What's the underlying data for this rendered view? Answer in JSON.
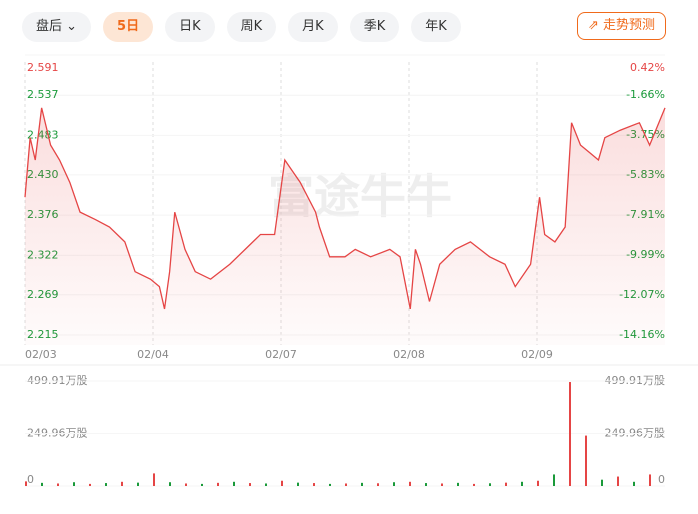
{
  "toolbar": {
    "session": "盘后",
    "tabs": [
      "5日",
      "日K",
      "周K",
      "月K",
      "季K",
      "年K"
    ],
    "predict": "走势预测"
  },
  "chart_data": [
    {
      "type": "line",
      "watermark": "富途牛牛",
      "color": "#e54545",
      "up_color": "#e54545",
      "down_color": "#1a9a3a",
      "x": [
        0,
        0.04,
        0.08,
        0.13,
        0.2,
        0.27,
        0.35,
        0.43,
        0.55,
        0.66,
        0.78,
        0.86,
        0.98,
        1.05,
        1.09,
        1.13,
        1.17,
        1.25,
        1.33,
        1.45,
        1.6,
        1.72,
        1.84,
        1.95,
        2.03,
        2.07,
        2.15,
        2.27,
        2.3,
        2.38,
        2.5,
        2.58,
        2.7,
        2.85,
        2.93,
        3.01,
        3.05,
        3.09,
        3.16,
        3.24,
        3.36,
        3.48,
        3.63,
        3.75,
        3.83,
        3.95,
        4.02,
        4.06,
        4.14,
        4.22,
        4.27,
        4.34,
        4.41,
        4.48,
        4.53,
        4.65,
        4.8,
        4.88,
        5
      ],
      "values": [
        2.4,
        2.48,
        2.45,
        2.52,
        2.47,
        2.45,
        2.42,
        2.38,
        2.37,
        2.36,
        2.34,
        2.3,
        2.29,
        2.28,
        2.25,
        2.3,
        2.38,
        2.33,
        2.3,
        2.29,
        2.31,
        2.33,
        2.35,
        2.35,
        2.45,
        2.44,
        2.42,
        2.38,
        2.36,
        2.32,
        2.32,
        2.33,
        2.32,
        2.33,
        2.32,
        2.25,
        2.33,
        2.31,
        2.26,
        2.31,
        2.33,
        2.34,
        2.32,
        2.31,
        2.28,
        2.31,
        2.4,
        2.35,
        2.34,
        2.36,
        2.5,
        2.47,
        2.46,
        2.45,
        2.48,
        2.49,
        2.5,
        2.47,
        2.52
      ],
      "xlim": [
        0,
        5
      ],
      "xticks": [
        {
          "value": 0,
          "label": "02/03"
        },
        {
          "value": 1,
          "label": "02/04"
        },
        {
          "value": 2,
          "label": "02/07"
        },
        {
          "value": 3,
          "label": "02/08"
        },
        {
          "value": 4,
          "label": "02/09"
        }
      ],
      "ylim": [
        2.215,
        2.591
      ],
      "yticks": [
        2.591,
        2.537,
        2.483,
        {
          "value": 2.43,
          "label": "2.430"
        },
        2.376,
        2.322,
        2.269,
        2.215
      ],
      "y2lim": [
        -14.16,
        0.42
      ],
      "y2ticks": [
        {
          "value": 0.42,
          "label": "0.42%"
        },
        {
          "value": -1.66,
          "label": "-1.66%"
        },
        {
          "value": -3.75,
          "label": "-3.75%"
        },
        {
          "value": -5.83,
          "label": "-5.83%"
        },
        {
          "value": -7.91,
          "label": "-7.91%"
        },
        {
          "value": -9.99,
          "label": "-9.99%"
        },
        {
          "value": -12.07,
          "label": "-12.07%"
        },
        {
          "value": -14.16,
          "label": "-14.16%"
        }
      ]
    },
    {
      "type": "bar",
      "x": [
        0,
        0.125,
        0.25,
        0.375,
        0.5,
        0.625,
        0.75,
        0.875,
        1,
        1.125,
        1.25,
        1.375,
        1.5,
        1.625,
        1.75,
        1.875,
        2,
        2.125,
        2.25,
        2.375,
        2.5,
        2.625,
        2.75,
        2.875,
        3,
        3.125,
        3.25,
        3.375,
        3.5,
        3.625,
        3.75,
        3.875,
        4,
        4.125,
        4.25,
        4.375,
        4.5,
        4.625,
        4.75,
        4.875
      ],
      "values": [
        22,
        15,
        12,
        18,
        10,
        14,
        20,
        16,
        60,
        18,
        12,
        10,
        15,
        20,
        14,
        12,
        25,
        16,
        14,
        10,
        12,
        15,
        13,
        18,
        20,
        14,
        12,
        15,
        10,
        13,
        16,
        20,
        25,
        55,
        495,
        240,
        30,
        45,
        20,
        55
      ],
      "colors": [
        "#e54545",
        "#1a9a3a",
        "#e54545",
        "#1a9a3a",
        "#e54545",
        "#1a9a3a",
        "#e54545",
        "#1a9a3a",
        "#e54545",
        "#1a9a3a",
        "#e54545",
        "#1a9a3a",
        "#e54545",
        "#1a9a3a",
        "#e54545",
        "#1a9a3a",
        "#e54545",
        "#1a9a3a",
        "#e54545",
        "#1a9a3a",
        "#e54545",
        "#1a9a3a",
        "#e54545",
        "#1a9a3a",
        "#e54545",
        "#1a9a3a",
        "#e54545",
        "#1a9a3a",
        "#e54545",
        "#1a9a3a",
        "#e54545",
        "#1a9a3a",
        "#e54545",
        "#1a9a3a",
        "#e54545",
        "#e54545",
        "#1a9a3a",
        "#e54545",
        "#1a9a3a",
        "#e54545"
      ],
      "xlim": [
        0,
        5
      ],
      "ylim": [
        0,
        499.91
      ],
      "yticks": [
        {
          "value": 499.91,
          "label": "499.91万股"
        },
        {
          "value": 249.96,
          "label": "249.96万股"
        },
        0
      ]
    }
  ]
}
